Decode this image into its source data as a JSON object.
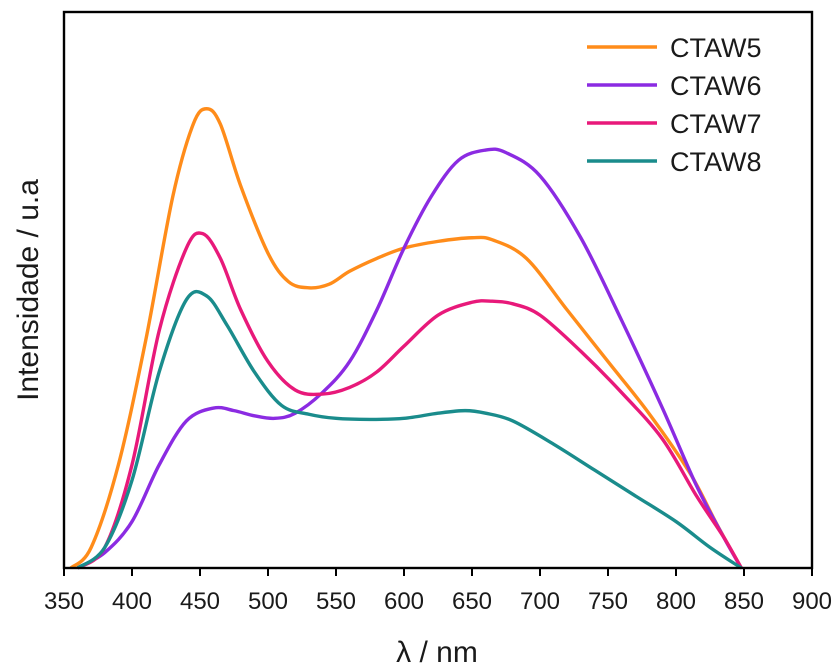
{
  "chart_data": {
    "type": "line",
    "xlabel": "λ / nm",
    "ylabel": "Intensidade / u.a",
    "xlim": [
      350,
      900
    ],
    "ylim": [
      0,
      1.0
    ],
    "x_ticks": [
      "350",
      "400",
      "450",
      "500",
      "550",
      "600",
      "650",
      "700",
      "750",
      "800",
      "850",
      "900"
    ],
    "y_ticks_shown": false,
    "legend_position": "top-right",
    "series": [
      {
        "name": "CTAW5",
        "color": "#ff8c1a",
        "points": [
          [
            355,
            0.0
          ],
          [
            370,
            0.04
          ],
          [
            390,
            0.2
          ],
          [
            410,
            0.44
          ],
          [
            430,
            0.72
          ],
          [
            445,
            0.86
          ],
          [
            455,
            0.89
          ],
          [
            465,
            0.86
          ],
          [
            480,
            0.74
          ],
          [
            500,
            0.61
          ],
          [
            515,
            0.555
          ],
          [
            530,
            0.543
          ],
          [
            545,
            0.55
          ],
          [
            560,
            0.575
          ],
          [
            580,
            0.6
          ],
          [
            600,
            0.62
          ],
          [
            625,
            0.633
          ],
          [
            650,
            0.64
          ],
          [
            665,
            0.636
          ],
          [
            690,
            0.6
          ],
          [
            720,
            0.5
          ],
          [
            750,
            0.4
          ],
          [
            780,
            0.3
          ],
          [
            810,
            0.185
          ],
          [
            830,
            0.085
          ],
          [
            848,
            0.0
          ]
        ]
      },
      {
        "name": "CTAW6",
        "color": "#8b2be2",
        "points": [
          [
            360,
            0.0
          ],
          [
            380,
            0.03
          ],
          [
            400,
            0.09
          ],
          [
            420,
            0.2
          ],
          [
            440,
            0.285
          ],
          [
            460,
            0.31
          ],
          [
            475,
            0.305
          ],
          [
            490,
            0.295
          ],
          [
            505,
            0.29
          ],
          [
            520,
            0.3
          ],
          [
            540,
            0.34
          ],
          [
            560,
            0.4
          ],
          [
            580,
            0.5
          ],
          [
            600,
            0.62
          ],
          [
            620,
            0.72
          ],
          [
            640,
            0.79
          ],
          [
            660,
            0.81
          ],
          [
            675,
            0.805
          ],
          [
            700,
            0.76
          ],
          [
            730,
            0.64
          ],
          [
            760,
            0.48
          ],
          [
            790,
            0.31
          ],
          [
            815,
            0.16
          ],
          [
            835,
            0.06
          ],
          [
            848,
            0.0
          ]
        ]
      },
      {
        "name": "CTAW7",
        "color": "#e8197a",
        "points": [
          [
            360,
            0.0
          ],
          [
            380,
            0.04
          ],
          [
            400,
            0.2
          ],
          [
            420,
            0.46
          ],
          [
            440,
            0.62
          ],
          [
            452,
            0.648
          ],
          [
            465,
            0.6
          ],
          [
            480,
            0.5
          ],
          [
            500,
            0.4
          ],
          [
            520,
            0.345
          ],
          [
            540,
            0.337
          ],
          [
            560,
            0.35
          ],
          [
            580,
            0.38
          ],
          [
            600,
            0.43
          ],
          [
            625,
            0.49
          ],
          [
            650,
            0.515
          ],
          [
            665,
            0.517
          ],
          [
            680,
            0.512
          ],
          [
            700,
            0.49
          ],
          [
            730,
            0.42
          ],
          [
            760,
            0.34
          ],
          [
            790,
            0.25
          ],
          [
            815,
            0.14
          ],
          [
            835,
            0.06
          ],
          [
            848,
            0.0
          ]
        ]
      },
      {
        "name": "CTAW8",
        "color": "#1a8c8c",
        "points": [
          [
            360,
            0.0
          ],
          [
            380,
            0.04
          ],
          [
            400,
            0.17
          ],
          [
            420,
            0.38
          ],
          [
            440,
            0.52
          ],
          [
            455,
            0.527
          ],
          [
            470,
            0.47
          ],
          [
            490,
            0.38
          ],
          [
            510,
            0.315
          ],
          [
            530,
            0.298
          ],
          [
            550,
            0.29
          ],
          [
            575,
            0.288
          ],
          [
            600,
            0.29
          ],
          [
            625,
            0.3
          ],
          [
            645,
            0.305
          ],
          [
            660,
            0.3
          ],
          [
            680,
            0.285
          ],
          [
            710,
            0.24
          ],
          [
            740,
            0.19
          ],
          [
            770,
            0.14
          ],
          [
            800,
            0.09
          ],
          [
            825,
            0.04
          ],
          [
            848,
            0.0
          ]
        ]
      }
    ]
  }
}
